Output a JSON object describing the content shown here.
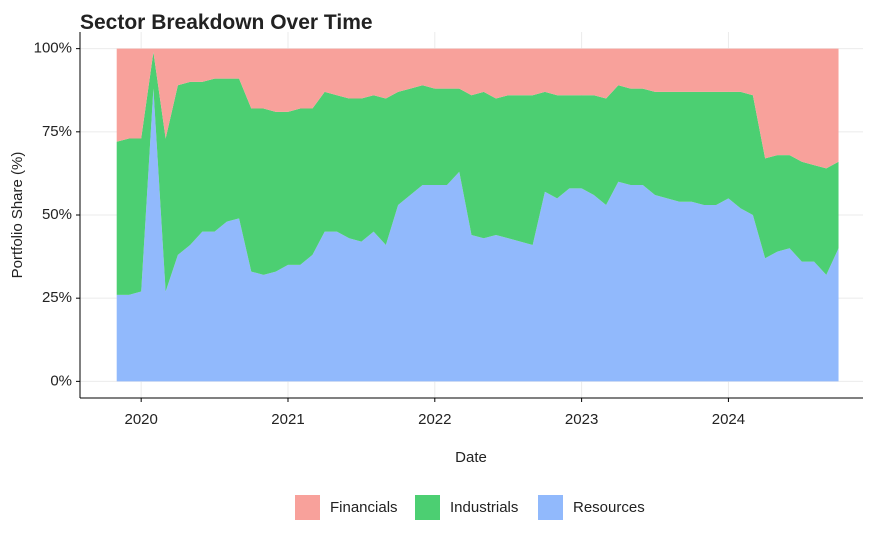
{
  "chart_data": {
    "type": "stacked-area",
    "title": "Sector Breakdown Over Time",
    "xlabel": "Date",
    "ylabel": "Portfolio Share (%)",
    "x": [
      "2019-11",
      "2019-12",
      "2020-01",
      "2020-02",
      "2020-03",
      "2020-04",
      "2020-05",
      "2020-06",
      "2020-07",
      "2020-08",
      "2020-09",
      "2020-10",
      "2020-11",
      "2020-12",
      "2021-01",
      "2021-02",
      "2021-03",
      "2021-04",
      "2021-05",
      "2021-06",
      "2021-07",
      "2021-08",
      "2021-09",
      "2021-10",
      "2021-11",
      "2021-12",
      "2022-01",
      "2022-02",
      "2022-03",
      "2022-04",
      "2022-05",
      "2022-06",
      "2022-07",
      "2022-08",
      "2022-09",
      "2022-10",
      "2022-11",
      "2022-12",
      "2023-01",
      "2023-02",
      "2023-03",
      "2023-04",
      "2023-05",
      "2023-06",
      "2023-07",
      "2023-08",
      "2023-09",
      "2023-10",
      "2023-11",
      "2023-12",
      "2024-01",
      "2024-02",
      "2024-03",
      "2024-04",
      "2024-05",
      "2024-06",
      "2024-07",
      "2024-08",
      "2024-09",
      "2024-10"
    ],
    "series": [
      {
        "name": "Financials",
        "color": "#f8a19b",
        "values": [
          28,
          27,
          27,
          1,
          27,
          11,
          10,
          10,
          9,
          9,
          9,
          18,
          18,
          19,
          19,
          18,
          18,
          13,
          14,
          15,
          15,
          14,
          15,
          13,
          12,
          11,
          12,
          12,
          12,
          14,
          13,
          15,
          14,
          14,
          14,
          13,
          14,
          14,
          14,
          14,
          15,
          11,
          12,
          12,
          13,
          13,
          13,
          13,
          13,
          13,
          13,
          13,
          14,
          33,
          32,
          32,
          34,
          35,
          36,
          34
        ]
      },
      {
        "name": "Industrials",
        "color": "#4ccf72",
        "values": [
          46,
          47,
          46,
          11,
          46,
          51,
          49,
          45,
          46,
          43,
          42,
          49,
          50,
          48,
          46,
          47,
          44,
          42,
          41,
          42,
          43,
          41,
          44,
          34,
          32,
          30,
          29,
          29,
          25,
          42,
          44,
          41,
          43,
          44,
          45,
          30,
          31,
          28,
          28,
          30,
          32,
          29,
          29,
          29,
          31,
          32,
          33,
          33,
          34,
          34,
          32,
          35,
          36,
          30,
          29,
          28,
          30,
          29,
          32,
          26
        ]
      },
      {
        "name": "Resources",
        "color": "#91b9fc",
        "values": [
          26,
          26,
          27,
          88,
          27,
          38,
          41,
          45,
          45,
          48,
          49,
          33,
          32,
          33,
          35,
          35,
          38,
          45,
          45,
          43,
          42,
          45,
          41,
          53,
          56,
          59,
          59,
          59,
          63,
          44,
          43,
          44,
          43,
          42,
          41,
          57,
          55,
          58,
          58,
          56,
          53,
          60,
          59,
          59,
          56,
          55,
          54,
          54,
          53,
          53,
          55,
          52,
          50,
          37,
          39,
          40,
          36,
          36,
          32,
          40
        ]
      }
    ],
    "xlim": [
      "2019-08",
      "2024-12"
    ],
    "xticks": [
      {
        "value": "2020-01",
        "label": "2020"
      },
      {
        "value": "2021-01",
        "label": "2021"
      },
      {
        "value": "2022-01",
        "label": "2022"
      },
      {
        "value": "2023-01",
        "label": "2023"
      },
      {
        "value": "2024-01",
        "label": "2024"
      }
    ],
    "ylim": [
      -5,
      105
    ],
    "yticks": [
      {
        "value": 0,
        "label": "0%"
      },
      {
        "value": 25,
        "label": "25%"
      },
      {
        "value": 50,
        "label": "50%"
      },
      {
        "value": 75,
        "label": "75%"
      },
      {
        "value": 100,
        "label": "100%"
      }
    ],
    "grid": true,
    "legend": "bottom"
  }
}
